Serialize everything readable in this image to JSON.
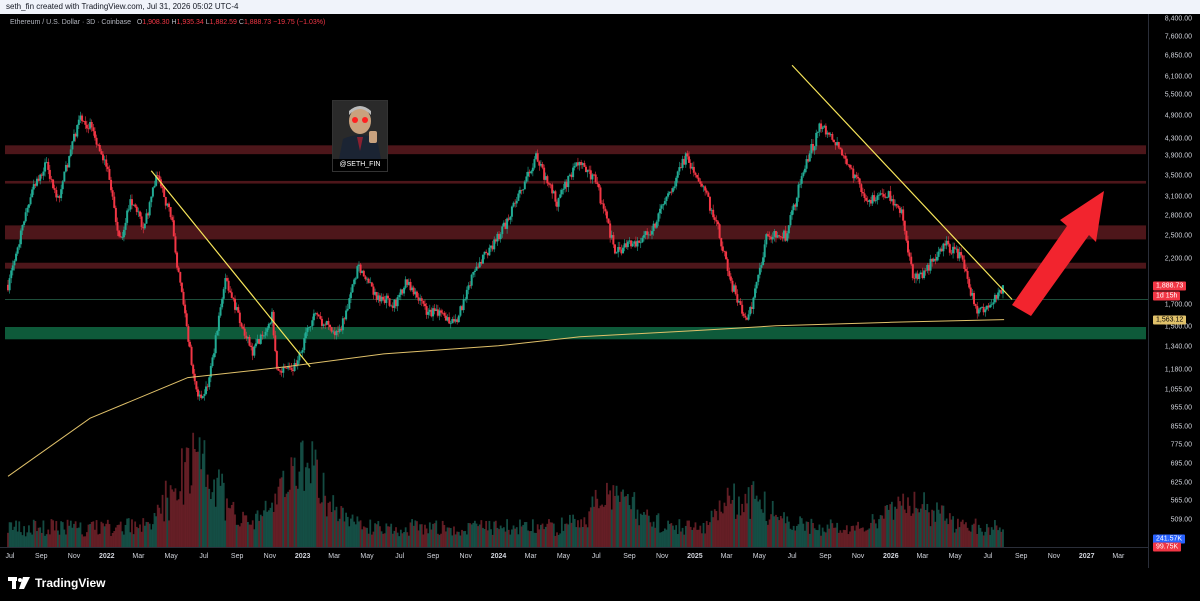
{
  "header": {
    "attribution": "seth_fin created with TradingView.com, Jul 31, 2026 05:02 UTC-4"
  },
  "symbol": {
    "name": "Ethereum / U.S. Dollar · 3D · Coinbase",
    "o_key": "O",
    "o": "1,908.30",
    "h_key": "H",
    "h": "1,935.34",
    "l_key": "L",
    "l": "1,882.59",
    "c_key": "C",
    "c": "1,888.73",
    "change": "−19.75 (−1.03%)"
  },
  "brand": {
    "name": "TradingView"
  },
  "avatar": {
    "label": "@SETH_FIN"
  },
  "colors": {
    "up": "#22ab94",
    "down": "#f23645",
    "trend": "#f7e55a",
    "ma": "#e0c16a",
    "resistance": "#5a1a1e",
    "support": "#0e5a3a",
    "arrow": "#f2242e"
  },
  "chart_data": {
    "type": "candlestick",
    "title": "",
    "y_scale": "log",
    "y_ticks": [
      "8,400.00",
      "7,600.00",
      "6,850.00",
      "6,100.00",
      "5,500.00",
      "4,900.00",
      "4,300.00",
      "3,900.00",
      "3,500.00",
      "3,100.00",
      "2,800.00",
      "2,500.00",
      "2,200.00",
      "1,700.00",
      "1,500.00",
      "1,340.00",
      "1,180.00",
      "1,055.00",
      "955.00",
      "855.00",
      "775.00",
      "695.00",
      "625.00",
      "565.00",
      "509.00"
    ],
    "x_ticks": [
      "Jul",
      "Sep",
      "Nov",
      "2022",
      "Mar",
      "May",
      "Jul",
      "Sep",
      "Nov",
      "2023",
      "Mar",
      "May",
      "Jul",
      "Sep",
      "Nov",
      "2024",
      "Mar",
      "May",
      "Jul",
      "Sep",
      "Nov",
      "2025",
      "Mar",
      "May",
      "Jul",
      "Sep",
      "Nov",
      "2026",
      "Mar",
      "May",
      "Jul",
      "Sep",
      "Nov",
      "2027",
      "Mar"
    ],
    "x_range": [
      "2021-07",
      "2027-04"
    ],
    "close_path": [
      [
        "2021-07-01",
        1900
      ],
      [
        "2021-08-15",
        3200
      ],
      [
        "2021-09-10",
        3800
      ],
      [
        "2021-10-01",
        3000
      ],
      [
        "2021-11-10",
        4800
      ],
      [
        "2021-12-01",
        4600
      ],
      [
        "2022-01-01",
        3700
      ],
      [
        "2022-01-25",
        2400
      ],
      [
        "2022-02-15",
        3100
      ],
      [
        "2022-03-10",
        2600
      ],
      [
        "2022-04-05",
        3500
      ],
      [
        "2022-05-01",
        2800
      ],
      [
        "2022-05-15",
        2000
      ],
      [
        "2022-06-10",
        1200
      ],
      [
        "2022-06-20",
        1000
      ],
      [
        "2022-07-10",
        1100
      ],
      [
        "2022-08-10",
        1950
      ],
      [
        "2022-09-10",
        1500
      ],
      [
        "2022-10-01",
        1300
      ],
      [
        "2022-11-05",
        1600
      ],
      [
        "2022-11-15",
        1150
      ],
      [
        "2022-12-20",
        1200
      ],
      [
        "2023-01-20",
        1600
      ],
      [
        "2023-03-10",
        1450
      ],
      [
        "2023-04-15",
        2100
      ],
      [
        "2023-05-15",
        1800
      ],
      [
        "2023-06-20",
        1700
      ],
      [
        "2023-07-15",
        1950
      ],
      [
        "2023-08-20",
        1650
      ],
      [
        "2023-10-15",
        1550
      ],
      [
        "2023-11-15",
        2050
      ],
      [
        "2024-01-10",
        2600
      ],
      [
        "2024-03-10",
        3900
      ],
      [
        "2024-04-20",
        3000
      ],
      [
        "2024-05-25",
        3800
      ],
      [
        "2024-06-30",
        3400
      ],
      [
        "2024-08-05",
        2300
      ],
      [
        "2024-09-15",
        2400
      ],
      [
        "2024-10-15",
        2600
      ],
      [
        "2024-11-15",
        3200
      ],
      [
        "2024-12-15",
        3900
      ],
      [
        "2025-01-15",
        3300
      ],
      [
        "2025-02-10",
        2700
      ],
      [
        "2025-03-10",
        1900
      ],
      [
        "2025-04-10",
        1550
      ],
      [
        "2025-05-15",
        2500
      ],
      [
        "2025-06-20",
        2500
      ],
      [
        "2025-07-25",
        3700
      ],
      [
        "2025-08-25",
        4700
      ],
      [
        "2025-09-25",
        4100
      ],
      [
        "2025-10-25",
        3500
      ],
      [
        "2025-11-20",
        3000
      ],
      [
        "2025-12-20",
        3200
      ],
      [
        "2026-01-20",
        2900
      ],
      [
        "2026-02-10",
        2000
      ],
      [
        "2026-03-01",
        2000
      ],
      [
        "2026-04-10",
        2400
      ],
      [
        "2026-05-15",
        2200
      ],
      [
        "2026-06-10",
        1600
      ],
      [
        "2026-06-25",
        1650
      ],
      [
        "2026-07-31",
        1888.73
      ]
    ],
    "moving_average": [
      [
        "2021-07-01",
        650
      ],
      [
        "2021-12-01",
        900
      ],
      [
        "2022-06-01",
        1130
      ],
      [
        "2022-12-01",
        1200
      ],
      [
        "2023-06-01",
        1290
      ],
      [
        "2024-01-01",
        1350
      ],
      [
        "2024-06-01",
        1420
      ],
      [
        "2025-01-01",
        1470
      ],
      [
        "2025-06-01",
        1510
      ],
      [
        "2026-01-01",
        1540
      ],
      [
        "2026-07-31",
        1563.12
      ]
    ],
    "resistance_zones": [
      [
        3950,
        4150
      ],
      [
        2450,
        2650
      ],
      [
        2080,
        2150
      ],
      [
        3350,
        3400
      ]
    ],
    "support_zones": [
      [
        1400,
        1500
      ]
    ],
    "reference_lines": [
      1750
    ],
    "trendlines": [
      [
        [
          "2022-03-25",
          3600
        ],
        [
          "2023-01-15",
          1200
        ]
      ],
      [
        [
          "2025-07-01",
          6500
        ],
        [
          "2026-08-15",
          1750
        ]
      ]
    ],
    "volume_peaks": [
      [
        "2022-06-15",
        1
      ],
      [
        "2023-01-01",
        0.9
      ],
      [
        "2024-08-05",
        0.5
      ],
      [
        "2025-04-05",
        0.5
      ],
      [
        "2026-02-10",
        0.45
      ]
    ],
    "current_price": {
      "value": "1,888.73",
      "countdown": "1d 15h"
    },
    "ma_label": {
      "value": "1,563.12"
    },
    "volume_labels": {
      "vol": "241.57K",
      "vol_ma": "99.75K"
    }
  }
}
